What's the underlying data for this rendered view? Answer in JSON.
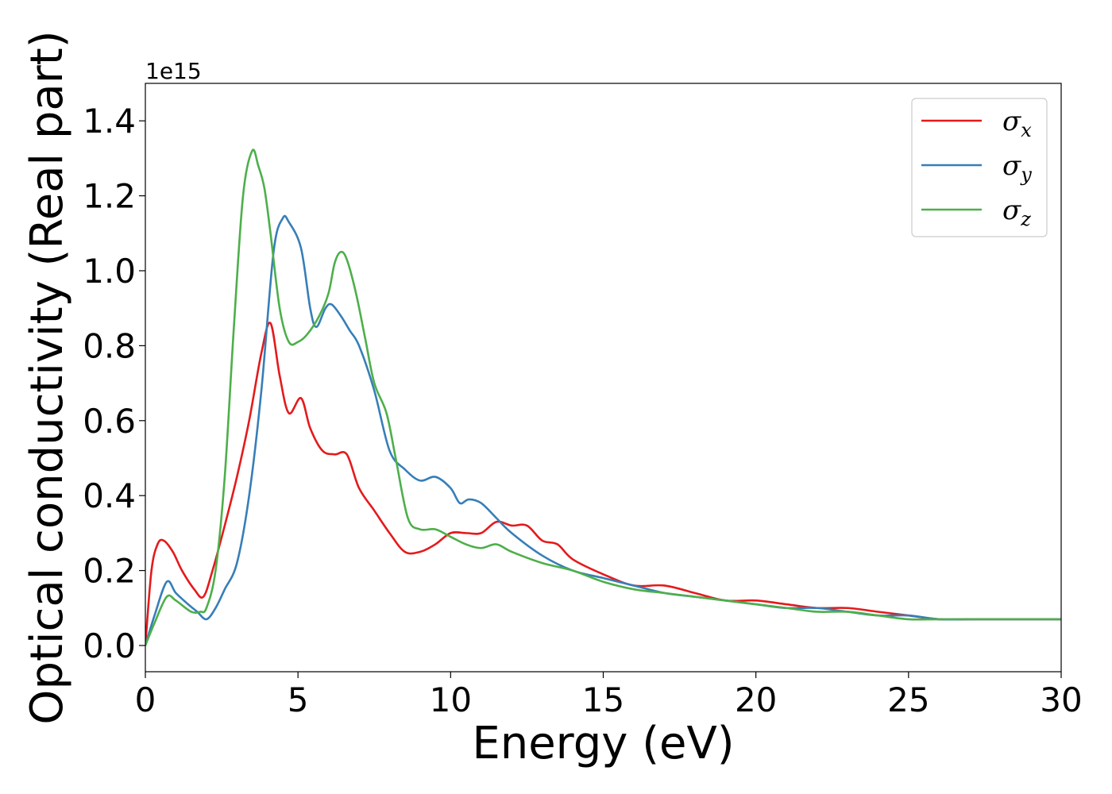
{
  "chart_data": {
    "type": "line",
    "title": "",
    "xlabel": "Energy (eV)",
    "ylabel": "Optical conductivity (Real part)",
    "y_offset_text": "1e15",
    "xlim": [
      0,
      30
    ],
    "ylim": [
      -0.07,
      1.5
    ],
    "x_ticks": [
      0,
      5,
      10,
      15,
      20,
      25,
      30
    ],
    "x_tick_labels": [
      "0",
      "5",
      "10",
      "15",
      "20",
      "25",
      "30"
    ],
    "y_ticks": [
      0.0,
      0.2,
      0.4,
      0.6,
      0.8,
      1.0,
      1.2,
      1.4
    ],
    "y_tick_labels": [
      "0.0",
      "0.2",
      "0.4",
      "0.6",
      "0.8",
      "1.0",
      "1.2",
      "1.4"
    ],
    "grid": false,
    "legend_position": "top-right",
    "series": [
      {
        "name": "σx",
        "name_base": "σ",
        "name_sub": "x",
        "color": "#e41a1c",
        "x": [
          0,
          0.2,
          0.4,
          0.6,
          0.9,
          1.2,
          1.6,
          1.9,
          2.2,
          2.6,
          3.0,
          3.4,
          3.8,
          4.1,
          4.4,
          4.7,
          5.1,
          5.4,
          5.8,
          6.2,
          6.6,
          7.0,
          7.5,
          8.0,
          8.5,
          9.0,
          9.5,
          10.0,
          10.5,
          11.0,
          11.5,
          12.0,
          12.5,
          13.0,
          13.5,
          14.0,
          15.0,
          16.0,
          17.0,
          18.0,
          19.0,
          20.0,
          21.0,
          22.0,
          23.0,
          24.0,
          25.0,
          26.0,
          27.0,
          28.0,
          29.0,
          30.0
        ],
        "y": [
          0.0,
          0.2,
          0.27,
          0.28,
          0.25,
          0.2,
          0.15,
          0.13,
          0.2,
          0.32,
          0.45,
          0.6,
          0.78,
          0.86,
          0.72,
          0.62,
          0.66,
          0.58,
          0.52,
          0.51,
          0.51,
          0.42,
          0.36,
          0.3,
          0.25,
          0.25,
          0.27,
          0.3,
          0.3,
          0.3,
          0.33,
          0.32,
          0.32,
          0.28,
          0.27,
          0.23,
          0.19,
          0.16,
          0.16,
          0.14,
          0.12,
          0.12,
          0.11,
          0.1,
          0.1,
          0.09,
          0.08,
          0.07,
          0.07,
          0.07,
          0.07,
          0.07
        ]
      },
      {
        "name": "σy",
        "name_base": "σ",
        "name_sub": "y",
        "color": "#377eb8",
        "x": [
          0,
          0.3,
          0.7,
          1.0,
          1.4,
          1.7,
          2.0,
          2.3,
          2.6,
          3.0,
          3.4,
          3.8,
          4.2,
          4.5,
          4.7,
          5.1,
          5.4,
          5.6,
          5.9,
          6.1,
          6.4,
          6.7,
          7.0,
          7.5,
          8.0,
          8.5,
          9.0,
          9.5,
          10.0,
          10.3,
          10.6,
          11.0,
          11.5,
          12.0,
          13.0,
          14.0,
          15.0,
          16.0,
          17.0,
          18.0,
          19.0,
          20.0,
          21.0,
          22.0,
          23.0,
          24.0,
          25.0,
          26.0,
          27.0,
          28.0,
          29.0,
          30.0
        ],
        "y": [
          0.0,
          0.08,
          0.17,
          0.14,
          0.11,
          0.09,
          0.07,
          0.1,
          0.15,
          0.22,
          0.4,
          0.68,
          1.05,
          1.14,
          1.13,
          1.06,
          0.9,
          0.85,
          0.9,
          0.91,
          0.88,
          0.84,
          0.8,
          0.68,
          0.52,
          0.47,
          0.44,
          0.45,
          0.42,
          0.38,
          0.39,
          0.38,
          0.34,
          0.3,
          0.24,
          0.2,
          0.18,
          0.16,
          0.14,
          0.13,
          0.12,
          0.11,
          0.1,
          0.1,
          0.09,
          0.08,
          0.08,
          0.07,
          0.07,
          0.07,
          0.07,
          0.07
        ]
      },
      {
        "name": "σz",
        "name_base": "σ",
        "name_sub": "z",
        "color": "#4daf4a",
        "x": [
          0,
          0.3,
          0.7,
          1.0,
          1.5,
          1.8,
          2.0,
          2.3,
          2.6,
          2.9,
          3.2,
          3.5,
          3.7,
          3.9,
          4.1,
          4.4,
          4.7,
          5.0,
          5.3,
          5.7,
          6.0,
          6.2,
          6.4,
          6.6,
          6.9,
          7.2,
          7.5,
          7.9,
          8.2,
          8.6,
          9.0,
          9.5,
          10.0,
          10.5,
          11.0,
          11.5,
          12.0,
          13.0,
          14.0,
          15.0,
          16.0,
          17.0,
          18.0,
          19.0,
          20.0,
          21.0,
          22.0,
          23.0,
          24.0,
          25.0,
          26.0,
          27.0,
          28.0,
          29.0,
          30.0
        ],
        "y": [
          0.0,
          0.06,
          0.13,
          0.12,
          0.09,
          0.09,
          0.1,
          0.2,
          0.45,
          0.85,
          1.2,
          1.32,
          1.28,
          1.22,
          1.1,
          0.9,
          0.81,
          0.81,
          0.83,
          0.88,
          0.94,
          1.02,
          1.05,
          1.03,
          0.94,
          0.82,
          0.7,
          0.62,
          0.5,
          0.34,
          0.31,
          0.31,
          0.29,
          0.27,
          0.26,
          0.27,
          0.25,
          0.22,
          0.2,
          0.17,
          0.15,
          0.14,
          0.13,
          0.12,
          0.11,
          0.1,
          0.09,
          0.09,
          0.08,
          0.07,
          0.07,
          0.07,
          0.07,
          0.07,
          0.07
        ]
      }
    ]
  }
}
